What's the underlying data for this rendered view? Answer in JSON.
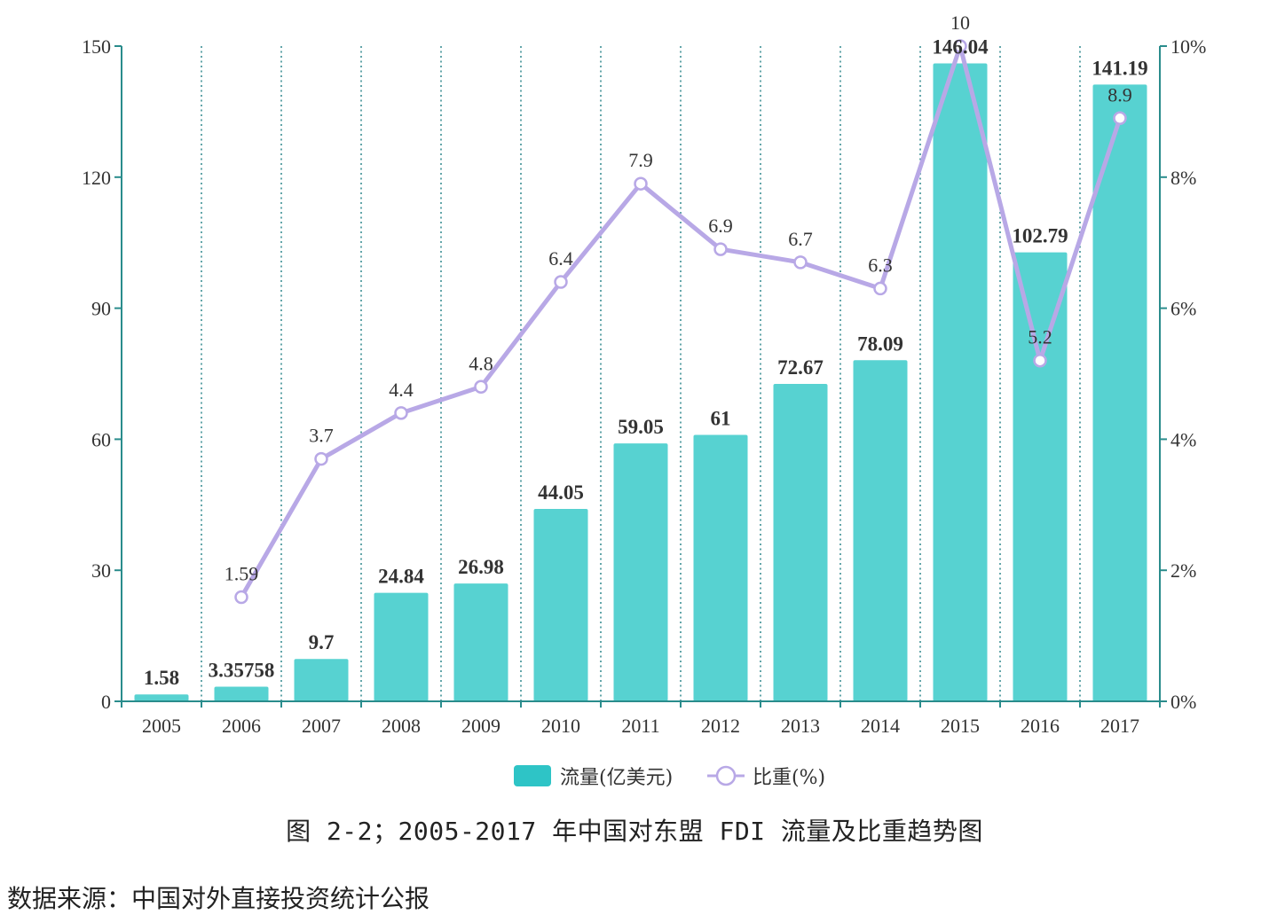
{
  "chart_data": {
    "type": "bar+line",
    "categories": [
      "2005",
      "2006",
      "2007",
      "2008",
      "2009",
      "2010",
      "2011",
      "2012",
      "2013",
      "2014",
      "2015",
      "2016",
      "2017"
    ],
    "series": [
      {
        "name": "流量(亿美元)",
        "type": "bar",
        "axis": "left",
        "values": [
          1.58,
          3.35758,
          9.7,
          24.84,
          26.98,
          44.05,
          59.05,
          61,
          72.67,
          78.09,
          146.04,
          102.79,
          141.19
        ],
        "labels": [
          "1.58",
          "3.35758",
          "9.7",
          "24.84",
          "26.98",
          "44.05",
          "59.05",
          "61",
          "72.67",
          "78.09",
          "146.04",
          "102.79",
          "141.19"
        ]
      },
      {
        "name": "比重(%)",
        "type": "line",
        "axis": "right",
        "values": [
          null,
          1.59,
          3.7,
          4.4,
          4.8,
          6.4,
          7.9,
          6.9,
          6.7,
          6.3,
          10,
          5.2,
          8.9
        ],
        "labels": [
          "",
          "1.59",
          "3.7",
          "4.4",
          "4.8",
          "6.4",
          "7.9",
          "6.9",
          "6.7",
          "6.3",
          "10",
          "5.2",
          "8.9"
        ]
      }
    ],
    "left_axis": {
      "ticks": [
        "0",
        "30",
        "60",
        "90",
        "120",
        "150"
      ],
      "ylim": [
        0,
        150
      ]
    },
    "right_axis": {
      "ticks": [
        "0%",
        "2%",
        "4%",
        "6%",
        "8%",
        "10%"
      ],
      "ylim": [
        0,
        10
      ]
    },
    "grid": "vertical-dotted",
    "legend": "bottom-center",
    "colors": {
      "bar": "#57d2d1",
      "bar_legend": "#2ec4c6",
      "line": "#b8a8e6",
      "axis": "#2a8c8c",
      "grid": "#3c8f94"
    }
  },
  "caption": "图 2-2；2005-2017 年中国对东盟 FDI 流量及比重趋势图",
  "source": "数据来源：中国对外直接投资统计公报"
}
